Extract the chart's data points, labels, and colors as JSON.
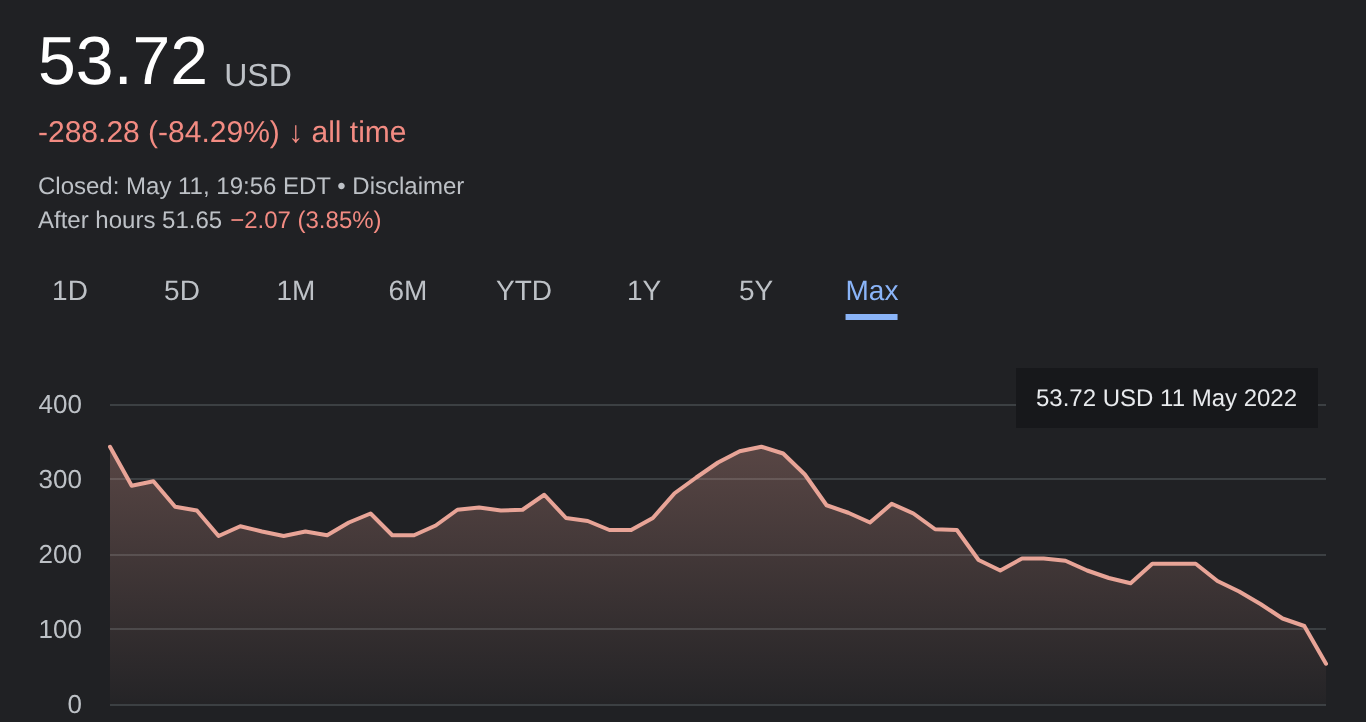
{
  "chart_data": {
    "type": "area",
    "title": "53.72",
    "annotations": [
      "USD",
      "-288.28 (-84.29%) ↓ all time",
      "Closed: May 11, 19:56 EDT • Disclaimer",
      "After hours 51.65",
      "−2.07 (3.85%)",
      "1D",
      "5D",
      "1M",
      "6M",
      "YTD",
      "1Y",
      "5Y",
      "Max",
      "53.72 USD  11 May 2022"
    ],
    "categories": [
      null,
      null,
      null,
      null,
      null,
      null,
      null,
      null,
      null,
      null,
      null,
      null,
      null,
      null,
      null,
      null,
      null,
      null,
      null,
      null,
      null,
      null,
      null,
      null,
      null,
      null,
      null,
      null,
      null,
      null,
      null,
      null,
      null,
      null,
      null,
      null,
      null,
      null,
      null,
      null,
      null,
      null,
      null,
      null,
      null,
      null,
      null,
      null,
      null,
      null,
      null,
      null,
      null,
      null,
      null,
      null,
      null
    ],
    "series": [
      {
        "color": "#e8a497",
        "values": [
          343,
          291,
          297,
          263,
          258,
          224,
          237,
          230,
          224,
          230,
          225,
          242,
          254,
          225,
          225,
          238,
          259,
          262,
          258,
          259,
          279,
          248,
          244,
          232,
          232,
          248,
          281,
          302,
          322,
          337,
          343,
          334,
          306,
          265,
          255,
          242,
          267,
          254,
          233,
          232,
          192,
          178,
          194,
          194,
          191,
          178,
          168,
          161,
          187,
          187,
          187,
          164,
          150,
          133,
          114,
          104,
          53.72
        ]
      }
    ],
    "ylim": [
      0,
      400
    ],
    "yticks": [
      0,
      100,
      200,
      300,
      400
    ],
    "grid": "y",
    "marker": "none",
    "line_style": "solid"
  }
}
